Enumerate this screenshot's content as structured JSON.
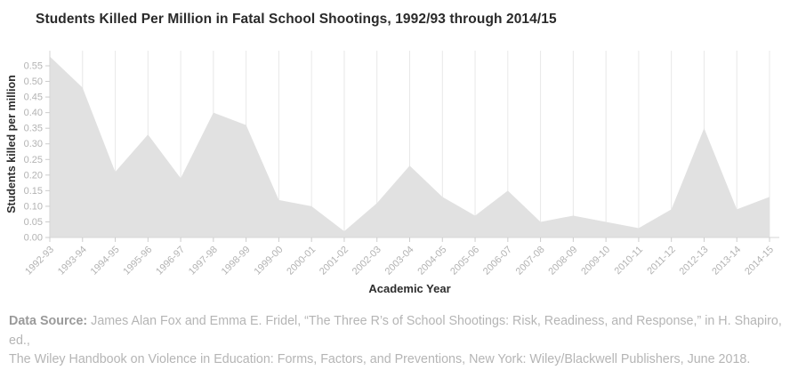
{
  "header": {
    "title": "Students Killed Per Million in Fatal School Shootings, 1992/93 through 2014/15"
  },
  "chart_data": {
    "type": "area",
    "title": "Students Killed Per Million in Fatal School Shootings, 1992/93 through 2014/15",
    "xlabel": "Academic Year",
    "ylabel": "Students killed per million",
    "categories": [
      "1992-93",
      "1993-94",
      "1994-95",
      "1995-96",
      "1996-97",
      "1997-98",
      "1998-99",
      "1999-00",
      "2000-01",
      "2001-02",
      "2002-03",
      "2003-04",
      "2004-05",
      "2005-06",
      "2006-07",
      "2007-08",
      "2008-09",
      "2009-10",
      "2010-11",
      "2011-12",
      "2012-13",
      "2013-14",
      "2014-15"
    ],
    "values": [
      0.58,
      0.48,
      0.21,
      0.33,
      0.19,
      0.4,
      0.36,
      0.12,
      0.1,
      0.02,
      0.11,
      0.23,
      0.13,
      0.07,
      0.15,
      0.05,
      0.07,
      0.05,
      0.03,
      0.09,
      0.35,
      0.09,
      0.13
    ],
    "yticks": [
      "0.00",
      "0.05",
      "0.10",
      "0.15",
      "0.20",
      "0.25",
      "0.30",
      "0.35",
      "0.40",
      "0.45",
      "0.50",
      "0.55"
    ],
    "ytick_step": 0.05,
    "ylim": [
      0,
      0.55
    ],
    "grid": "vertical",
    "legend": "none",
    "colors": {
      "area_fill": "#e1e1e1",
      "gridline": "#e8e8e8",
      "axis_line": "#d6d6d6",
      "tick_mark": "#cccccc",
      "tick_label": "#b3b3b3",
      "axis_title": "#2d2d2d",
      "title": "#2a2a2a"
    }
  },
  "footer": {
    "label": "Data Source:",
    "line1_rest": " James Alan Fox and Emma E. Fridel, “The Three R’s of School Shootings: Risk, Readiness, and Response,” in H. Shapiro, ed.,",
    "line2": "The Wiley Handbook on Violence in Education: Forms, Factors, and Preventions, New York: Wiley/Blackwell Publishers, June 2018."
  }
}
